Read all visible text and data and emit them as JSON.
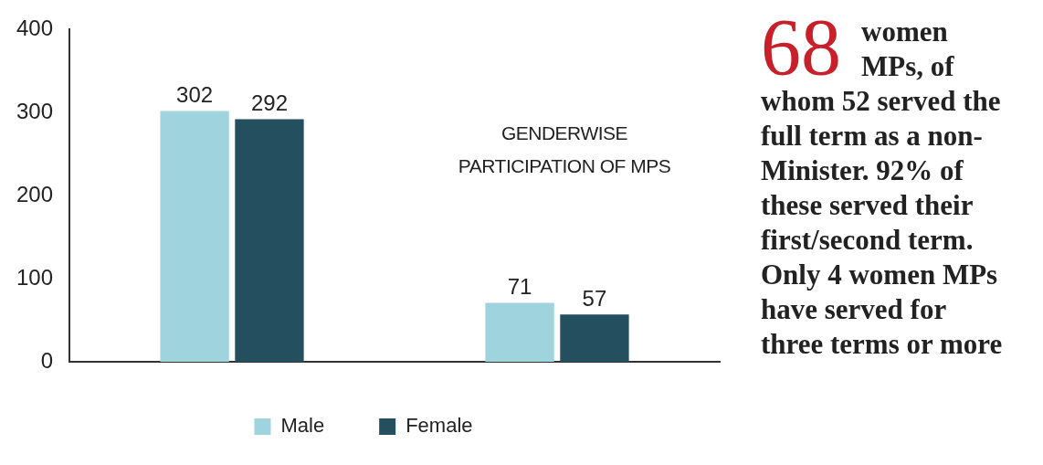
{
  "chart_data": {
    "type": "bar",
    "title": "GENDERWISE PARTICIPATION OF MPS",
    "categories": [
      null,
      null
    ],
    "series": [
      {
        "name": "Male",
        "color": "#9fd4de",
        "values": [
          302,
          71
        ]
      },
      {
        "name": "Female",
        "color": "#234f5f",
        "values": [
          292,
          57
        ]
      }
    ],
    "ylim": [
      0,
      400
    ],
    "yticks": [
      0,
      100,
      200,
      300,
      400
    ],
    "grid": false,
    "legend": "bottom",
    "data_labels": true,
    "annotations": [
      "68 women MPs, of whom 52 served the full term as a non-Minister. 92% of these served their first/second term.  Only 4 women MPs have served for three terms or more"
    ]
  }
}
